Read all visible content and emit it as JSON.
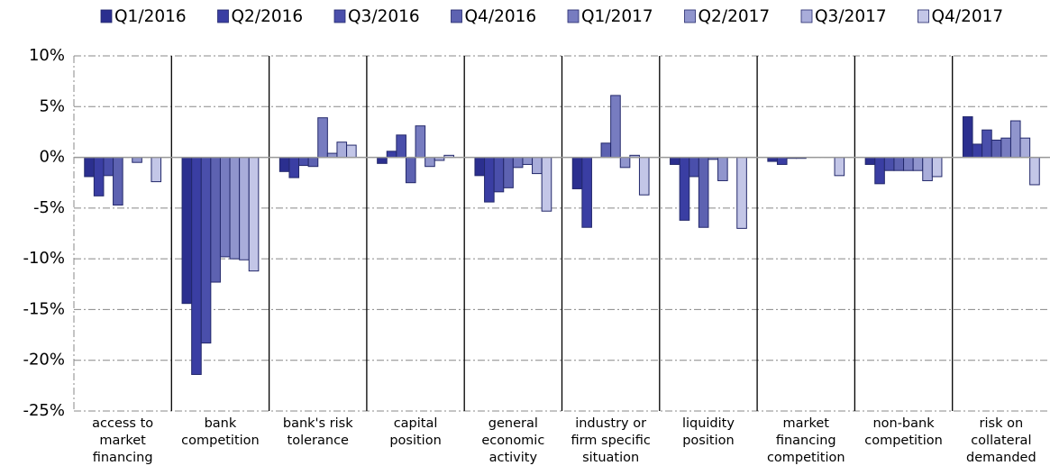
{
  "chart_data": {
    "type": "bar",
    "categories": [
      "access to market financing",
      "bank competition",
      "bank's risk tolerance",
      "capital position",
      "general economic activity",
      "industry or firm specific situation",
      "liquidity position",
      "market financing competition",
      "non-bank competition",
      "risk on collateral demanded"
    ],
    "series": [
      {
        "name": "Q1/2016",
        "color": "#2b2f8f",
        "values": [
          -1.9,
          -14.4,
          -1.4,
          -0.6,
          -1.8,
          -3.1,
          -0.7,
          -0.4,
          -0.7,
          4.0
        ]
      },
      {
        "name": "Q2/2016",
        "color": "#3a3ea3",
        "values": [
          -3.8,
          -21.4,
          -2.0,
          0.6,
          -4.4,
          -6.9,
          -6.2,
          -0.7,
          -2.6,
          1.3
        ]
      },
      {
        "name": "Q3/2016",
        "color": "#4a4fab",
        "values": [
          -1.8,
          -18.3,
          -0.8,
          2.2,
          -3.4,
          0,
          -1.9,
          -0.1,
          -1.3,
          2.7
        ]
      },
      {
        "name": "Q4/2016",
        "color": "#5d62b1",
        "values": [
          -4.7,
          -12.3,
          -0.9,
          -2.5,
          -3.0,
          1.4,
          -6.9,
          -0.1,
          -1.3,
          1.7
        ]
      },
      {
        "name": "Q1/2017",
        "color": "#777cc0",
        "values": [
          0,
          -9.8,
          3.9,
          3.1,
          -1.0,
          6.1,
          -0.2,
          0,
          -1.3,
          1.9
        ]
      },
      {
        "name": "Q2/2017",
        "color": "#9095cd",
        "values": [
          -0.5,
          -10.0,
          0.4,
          -0.9,
          -0.7,
          -1.0,
          -2.3,
          0,
          -1.3,
          3.6
        ]
      },
      {
        "name": "Q3/2017",
        "color": "#a9adda",
        "values": [
          0,
          -10.1,
          1.5,
          -0.3,
          -1.6,
          0.2,
          0,
          0,
          -2.3,
          1.9
        ]
      },
      {
        "name": "Q4/2017",
        "color": "#c3c6e7",
        "values": [
          -2.4,
          -11.2,
          1.2,
          0.2,
          -5.3,
          -3.7,
          -7.0,
          -1.8,
          -1.9,
          -2.7
        ]
      }
    ],
    "ylim": [
      -25,
      10
    ],
    "yticks": [
      {
        "value": -25,
        "label": "-25%"
      },
      {
        "value": -20,
        "label": "-20%"
      },
      {
        "value": -15,
        "label": "-15%"
      },
      {
        "value": -10,
        "label": "-10%"
      },
      {
        "value": -5,
        "label": "-5%"
      },
      {
        "value": 0,
        "label": "0%"
      },
      {
        "value": 5,
        "label": "5%"
      },
      {
        "value": 10,
        "label": "10%"
      }
    ],
    "grid": true,
    "legend": "top"
  }
}
